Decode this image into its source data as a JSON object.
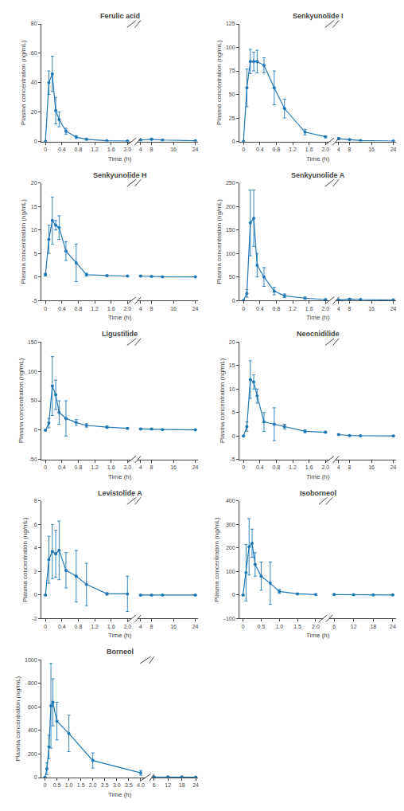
{
  "chart_data": [
    {
      "type": "line",
      "title": "Ferulic acid",
      "ylabel": "Plasma concentration (ng/mL)",
      "xlabel": "Time (h)",
      "color": "#1f77b4",
      "marker": "circle",
      "grid": false,
      "x": [
        0,
        0.083,
        0.167,
        0.25,
        0.333,
        0.5,
        0.75,
        1.0,
        1.5,
        2.0,
        4.0,
        8.0,
        12.0,
        24.0
      ],
      "values": [
        0,
        40,
        46,
        21,
        15,
        7,
        3,
        1.5,
        0.5,
        0.3,
        1.0,
        1.5,
        1.0,
        0.5
      ],
      "error": [
        0,
        8,
        12,
        9,
        5,
        2,
        1,
        0.5,
        0.2,
        0.1,
        0.3,
        0.5,
        0.3,
        0.2
      ],
      "ylim": [
        0,
        80
      ],
      "yticks": [
        0,
        20,
        40,
        60,
        80
      ],
      "xlim": [
        [
          -0.1,
          2.1
        ],
        [
          3.0,
          25
        ]
      ],
      "xticks": [
        [
          0,
          0.4,
          0.8,
          1.2,
          1.6,
          {
            "value": 2.0,
            "label": "2.0"
          }
        ],
        [
          4,
          8,
          16,
          24
        ]
      ]
    },
    {
      "type": "line",
      "title": "Senkyunolide I",
      "ylabel": "Plasma concentration (ng/mL)",
      "xlabel": "Time (h)",
      "color": "#1f77b4",
      "marker": "circle",
      "grid": false,
      "x": [
        0,
        0.083,
        0.167,
        0.25,
        0.333,
        0.5,
        0.75,
        1.0,
        1.5,
        2.0,
        4.0,
        8.0,
        12.0,
        24.0
      ],
      "values": [
        0,
        57,
        85,
        85,
        85,
        81,
        57,
        35,
        10,
        5,
        3,
        2,
        1,
        0.5
      ],
      "error": [
        0,
        20,
        13,
        10,
        12,
        8,
        18,
        10,
        3,
        1,
        1,
        0.5,
        0.3,
        0.2
      ],
      "ylim": [
        0,
        125
      ],
      "yticks": [
        0,
        25,
        50,
        75,
        100,
        125
      ],
      "xlim": [
        [
          -0.1,
          2.1
        ],
        [
          3.0,
          25
        ]
      ],
      "xticks": [
        [
          0,
          0.4,
          0.8,
          1.2,
          1.6,
          {
            "value": 2.0,
            "label": "2.0"
          }
        ],
        [
          4,
          8,
          16,
          24
        ]
      ]
    },
    {
      "type": "line",
      "title": "Senkyunolide H",
      "ylabel": "Plasma concentration (ng/mL)",
      "xlabel": "Time (h)",
      "color": "#1f77b4",
      "marker": "circle",
      "grid": false,
      "x": [
        0,
        0.083,
        0.167,
        0.25,
        0.333,
        0.5,
        0.75,
        1.0,
        1.5,
        2.0,
        4.0,
        8.0,
        12.0,
        24.0
      ],
      "values": [
        0.5,
        8,
        12,
        11,
        10.5,
        5.5,
        3.0,
        0.5,
        0.3,
        0.2,
        0.2,
        0.1,
        0.05,
        0.02
      ],
      "error": [
        0.3,
        3,
        5,
        1,
        2.5,
        2,
        4.0,
        0.3,
        0.1,
        0.1,
        0.1,
        0.05,
        0.02,
        0.01
      ],
      "ylim": [
        -5,
        20
      ],
      "yticks": [
        -5,
        0,
        5,
        10,
        15,
        20
      ],
      "xlim": [
        [
          -0.1,
          2.1
        ],
        [
          3.0,
          25
        ]
      ],
      "xticks": [
        [
          0,
          0.4,
          0.8,
          1.2,
          1.6,
          {
            "value": 2.0,
            "label": "2.0"
          }
        ],
        [
          4,
          8,
          16,
          24
        ]
      ]
    },
    {
      "type": "line",
      "title": "Senkyunolide A",
      "ylabel": "Plasma concentration (ng/mL)",
      "xlabel": "Time (h)",
      "color": "#1f77b4",
      "marker": "circle",
      "grid": false,
      "x": [
        0,
        0.083,
        0.167,
        0.25,
        0.333,
        0.5,
        0.75,
        1.0,
        1.5,
        2.0,
        4.0,
        8.0,
        12.0,
        24.0
      ],
      "values": [
        0,
        15,
        165,
        175,
        75,
        50,
        20,
        10,
        5,
        2,
        1,
        3,
        2,
        1
      ],
      "error": [
        0,
        8,
        70,
        60,
        25,
        20,
        8,
        4,
        2,
        1,
        0.5,
        1,
        0.8,
        0.4
      ],
      "ylim": [
        0,
        250
      ],
      "yticks": [
        0,
        50,
        100,
        150,
        200,
        250
      ],
      "xlim": [
        [
          -0.1,
          2.1
        ],
        [
          3.0,
          25
        ]
      ],
      "xticks": [
        [
          0,
          0.4,
          0.8,
          1.2,
          1.6,
          {
            "value": 2.0,
            "label": "2.0"
          }
        ],
        [
          4,
          8,
          16,
          24
        ]
      ]
    },
    {
      "type": "line",
      "title": "Ligustilide",
      "ylabel": "Plasma concentration (ng/mL)",
      "xlabel": "Time (h)",
      "color": "#1f77b4",
      "marker": "circle",
      "grid": false,
      "x": [
        0,
        0.083,
        0.167,
        0.25,
        0.333,
        0.5,
        0.75,
        1.0,
        1.5,
        2.0,
        4.0,
        8.0,
        12.0,
        24.0
      ],
      "values": [
        0,
        12,
        75,
        60,
        30,
        20,
        13,
        8,
        5,
        3,
        2,
        2,
        1,
        0.5
      ],
      "error": [
        0,
        8,
        50,
        25,
        20,
        30,
        5,
        3,
        2,
        1,
        1,
        0.5,
        0.3,
        0.2
      ],
      "ylim": [
        -50,
        150
      ],
      "yticks": [
        -50,
        0,
        50,
        100,
        150
      ],
      "xlim": [
        [
          -0.1,
          2.1
        ],
        [
          3.0,
          25
        ]
      ],
      "xticks": [
        [
          0,
          0.4,
          0.8,
          1.2,
          1.6,
          {
            "value": 2.0,
            "label": "2.0"
          }
        ],
        [
          4,
          8,
          16,
          24
        ]
      ]
    },
    {
      "type": "line",
      "title": "Neocnidilide",
      "ylabel": "Plasma concentration (ng/mL)",
      "xlabel": "Time (h)",
      "color": "#1f77b4",
      "marker": "circle",
      "grid": false,
      "x": [
        0,
        0.083,
        0.167,
        0.25,
        0.333,
        0.5,
        0.75,
        1.0,
        1.5,
        2.0,
        4.0,
        8.0,
        12.0,
        24.0
      ],
      "values": [
        0,
        2,
        12,
        11.5,
        8.5,
        3.0,
        2.5,
        2.0,
        1.0,
        0.8,
        0.3,
        0.1,
        0.05,
        0.02
      ],
      "error": [
        0,
        1,
        4,
        1.5,
        1.5,
        2.0,
        3.5,
        0.5,
        0.3,
        0.2,
        0.1,
        0.05,
        0.02,
        0.01
      ],
      "ylim": [
        -5,
        20
      ],
      "yticks": [
        -5,
        0,
        5,
        10,
        15,
        20
      ],
      "xlim": [
        [
          -0.1,
          2.1
        ],
        [
          3.0,
          25
        ]
      ],
      "xticks": [
        [
          0,
          0.4,
          0.8,
          1.2,
          1.6,
          {
            "value": 2.0,
            "label": "2.0"
          }
        ],
        [
          4,
          8,
          16,
          24
        ]
      ]
    },
    {
      "type": "line",
      "title": "Levistolide A",
      "ylabel": "Plasma concentration (ng/mL)",
      "xlabel": "Time (h)",
      "color": "#1f77b4",
      "marker": "circle",
      "grid": false,
      "x": [
        0,
        0.083,
        0.167,
        0.25,
        0.333,
        0.5,
        0.75,
        1.0,
        1.5,
        2.0,
        4.0,
        8.0,
        12.0,
        24.0
      ],
      "values": [
        0,
        3.0,
        3.7,
        3.5,
        3.8,
        2.1,
        1.6,
        0.9,
        0.1,
        0.1,
        0.0,
        0.0,
        0.0,
        0.0
      ],
      "error": [
        0,
        2.0,
        2.3,
        2.0,
        2.5,
        1.5,
        2.2,
        1.8,
        0.1,
        1.5,
        0.0,
        0.0,
        0.0,
        0.0
      ],
      "ylim": [
        -2,
        8
      ],
      "yticks": [
        -2,
        0,
        2,
        4,
        6,
        8
      ],
      "xlim": [
        [
          -0.1,
          2.1
        ],
        [
          3.0,
          25
        ]
      ],
      "xticks": [
        [
          0,
          0.4,
          0.8,
          1.2,
          1.6,
          {
            "value": 2.0,
            "label": "2.0"
          }
        ],
        [
          4,
          8,
          16,
          24
        ]
      ]
    },
    {
      "type": "line",
      "title": "Isoborneol",
      "ylabel": "Plasma concentration (ng/mL)",
      "xlabel": "Time (h)",
      "color": "#1f77b4",
      "marker": "circle",
      "grid": false,
      "x": [
        0,
        0.083,
        0.167,
        0.25,
        0.333,
        0.5,
        0.75,
        1.0,
        1.5,
        2.0,
        6.0,
        12.0,
        18.0,
        24.0
      ],
      "values": [
        0,
        95,
        205,
        220,
        130,
        80,
        50,
        15,
        5,
        2,
        2,
        1,
        0.5,
        0.3
      ],
      "error": [
        0,
        120,
        120,
        60,
        50,
        60,
        90,
        8,
        3,
        1,
        0.5,
        0.3,
        0.2,
        0.1
      ],
      "ylim": [
        -100,
        400
      ],
      "yticks": [
        -100,
        0,
        100,
        200,
        300,
        400
      ],
      "xlim": [
        [
          -0.1,
          2.2
        ],
        [
          4.5,
          25
        ]
      ],
      "xticks": [
        [
          0,
          0.5,
          {
            "value": 1.0,
            "label": "1.0"
          },
          1.5,
          {
            "value": 2.0,
            "label": "2.0"
          }
        ],
        [
          6,
          12,
          18,
          24
        ]
      ]
    },
    {
      "type": "line",
      "title": "Borneol",
      "ylabel": "Plasma concentration (ng/mL)",
      "xlabel": "Time (h)",
      "color": "#1f77b4",
      "marker": "circle",
      "grid": false,
      "x": [
        0,
        0.083,
        0.167,
        0.25,
        0.333,
        0.5,
        1.0,
        2.0,
        4.0,
        6.0,
        12.0,
        18.0,
        24.0
      ],
      "values": [
        0,
        75,
        260,
        610,
        640,
        480,
        375,
        145,
        40,
        5,
        5,
        5,
        3
      ],
      "error": [
        0,
        50,
        100,
        360,
        200,
        160,
        155,
        65,
        20,
        2,
        2,
        2,
        1
      ],
      "ylim": [
        0,
        1000
      ],
      "yticks": [
        0,
        200,
        400,
        600,
        800,
        1000
      ],
      "xlim": [
        [
          -0.15,
          4.2
        ],
        [
          5.0,
          25
        ]
      ],
      "xticks": [
        [
          0,
          0.5,
          {
            "value": 1.0,
            "label": "1.0"
          },
          1.5,
          {
            "value": 2.0,
            "label": "2.0"
          },
          2.5,
          {
            "value": 3.0,
            "label": "3.0"
          },
          3.5,
          {
            "value": 4.0,
            "label": "4.0"
          }
        ],
        [
          6,
          12,
          18,
          24
        ]
      ]
    }
  ]
}
